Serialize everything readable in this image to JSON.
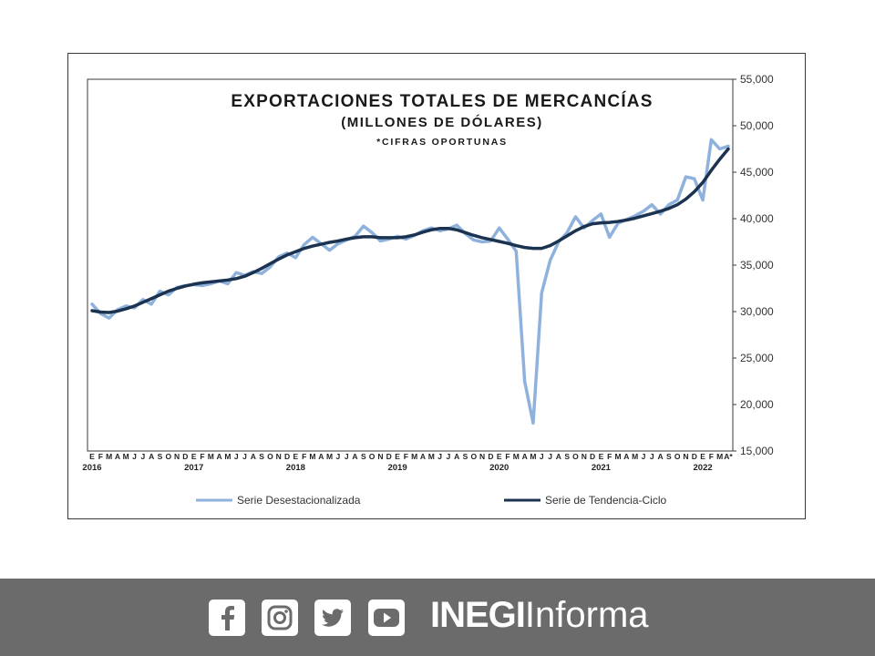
{
  "chart_data": {
    "type": "line",
    "title": "EXPORTACIONES TOTALES DE MERCANCÍAS",
    "subtitle": "(MILLONES DE DÓLARES)",
    "note": "*CIFRAS OPORTUNAS",
    "ylim": [
      15000,
      55000
    ],
    "yticks": [
      "15,000",
      "20,000",
      "25,000",
      "30,000",
      "35,000",
      "40,000",
      "45,000",
      "50,000",
      "55,000"
    ],
    "ytick_values": [
      15000,
      20000,
      25000,
      30000,
      35000,
      40000,
      45000,
      50000,
      55000
    ],
    "y_axis_side": "right",
    "grid": false,
    "legend_position": "bottom",
    "x": [
      "2016-01",
      "2016-02",
      "2016-03",
      "2016-04",
      "2016-05",
      "2016-06",
      "2016-07",
      "2016-08",
      "2016-09",
      "2016-10",
      "2016-11",
      "2016-12",
      "2017-01",
      "2017-02",
      "2017-03",
      "2017-04",
      "2017-05",
      "2017-06",
      "2017-07",
      "2017-08",
      "2017-09",
      "2017-10",
      "2017-11",
      "2017-12",
      "2018-01",
      "2018-02",
      "2018-03",
      "2018-04",
      "2018-05",
      "2018-06",
      "2018-07",
      "2018-08",
      "2018-09",
      "2018-10",
      "2018-11",
      "2018-12",
      "2019-01",
      "2019-02",
      "2019-03",
      "2019-04",
      "2019-05",
      "2019-06",
      "2019-07",
      "2019-08",
      "2019-09",
      "2019-10",
      "2019-11",
      "2019-12",
      "2020-01",
      "2020-02",
      "2020-03",
      "2020-04",
      "2020-05",
      "2020-06",
      "2020-07",
      "2020-08",
      "2020-09",
      "2020-10",
      "2020-11",
      "2020-12",
      "2021-01",
      "2021-02",
      "2021-03",
      "2021-04",
      "2021-05",
      "2021-06",
      "2021-07",
      "2021-08",
      "2021-09",
      "2021-10",
      "2021-11",
      "2021-12",
      "2022-01",
      "2022-02",
      "2022-03",
      "2022-04"
    ],
    "month_labels": [
      "E",
      "F",
      "M",
      "A",
      "M",
      "J",
      "J",
      "A",
      "S",
      "O",
      "N",
      "D",
      "E",
      "F",
      "M",
      "A",
      "M",
      "J",
      "J",
      "A",
      "S",
      "O",
      "N",
      "D",
      "E",
      "F",
      "M",
      "A",
      "M",
      "J",
      "J",
      "A",
      "S",
      "O",
      "N",
      "D",
      "E",
      "F",
      "M",
      "A",
      "M",
      "J",
      "J",
      "A",
      "S",
      "O",
      "N",
      "D",
      "E",
      "F",
      "M",
      "A",
      "M",
      "J",
      "J",
      "A",
      "S",
      "O",
      "N",
      "D",
      "E",
      "F",
      "M",
      "A",
      "M",
      "J",
      "J",
      "A",
      "S",
      "O",
      "N",
      "D",
      "E",
      "F",
      "M",
      "A*"
    ],
    "year_labels": [
      {
        "label": "2016",
        "index": 0
      },
      {
        "label": "2017",
        "index": 12
      },
      {
        "label": "2018",
        "index": 24
      },
      {
        "label": "2019",
        "index": 36
      },
      {
        "label": "2020",
        "index": 48
      },
      {
        "label": "2021",
        "index": 60
      },
      {
        "label": "2022",
        "index": 72
      }
    ],
    "series": [
      {
        "name": "Serie Desestacionalizada",
        "color": "#8fb2dd",
        "values": [
          30800,
          29800,
          29300,
          30200,
          30600,
          30400,
          31300,
          30800,
          32200,
          31800,
          32600,
          32800,
          32900,
          32800,
          33000,
          33300,
          33000,
          34200,
          33900,
          34300,
          34100,
          34800,
          35900,
          36300,
          35800,
          37200,
          38000,
          37300,
          36600,
          37300,
          37700,
          38100,
          39200,
          38500,
          37600,
          37800,
          38100,
          37800,
          38200,
          38700,
          39000,
          38700,
          38900,
          39300,
          38400,
          37700,
          37500,
          37600,
          39000,
          37800,
          36500,
          22500,
          18000,
          32000,
          35500,
          37500,
          38500,
          40200,
          39000,
          39800,
          40500,
          38000,
          39500,
          39900,
          40300,
          40800,
          41500,
          40500,
          41500,
          42000,
          44500,
          44300,
          42000,
          48500,
          47500,
          47800
        ]
      },
      {
        "name": "Serie de Tendencia-Ciclo",
        "color": "#1b3250",
        "values": [
          30100,
          29950,
          29900,
          30050,
          30300,
          30600,
          31000,
          31400,
          31800,
          32200,
          32500,
          32750,
          32950,
          33100,
          33200,
          33300,
          33400,
          33550,
          33800,
          34200,
          34650,
          35150,
          35650,
          36100,
          36450,
          36800,
          37050,
          37250,
          37450,
          37600,
          37800,
          37950,
          38050,
          38050,
          37950,
          37950,
          37950,
          38050,
          38250,
          38550,
          38800,
          38950,
          38950,
          38800,
          38500,
          38200,
          37950,
          37750,
          37550,
          37350,
          37100,
          36900,
          36800,
          36800,
          37100,
          37600,
          38150,
          38700,
          39150,
          39450,
          39550,
          39600,
          39700,
          39850,
          40050,
          40300,
          40550,
          40800,
          41100,
          41500,
          42100,
          42900,
          43900,
          45200,
          46400,
          47500
        ]
      }
    ]
  },
  "legend": [
    {
      "label": "Serie Desestacionalizada",
      "color": "#8fb2dd"
    },
    {
      "label": "Serie de Tendencia-Ciclo",
      "color": "#1b3250"
    }
  ],
  "footer": {
    "background": "#6b6b6b",
    "icons": [
      "facebook-icon",
      "instagram-icon",
      "twitter-icon",
      "youtube-icon"
    ],
    "brand_bold": "INEGI",
    "brand_regular": "Informa"
  }
}
